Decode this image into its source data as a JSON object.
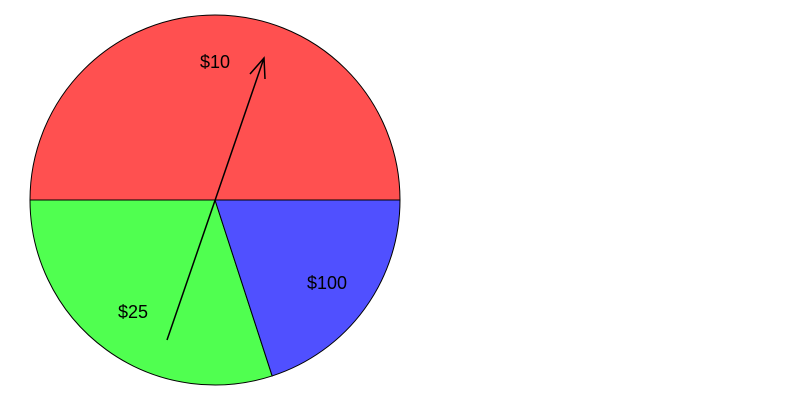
{
  "spinner": {
    "sectors": [
      {
        "id": "sector-10",
        "label": "$10",
        "color": "#ff5050",
        "start_deg": 180,
        "end_deg": 360
      },
      {
        "id": "sector-25",
        "label": "$25",
        "color": "#50ff50",
        "start_deg": 72,
        "end_deg": 180
      },
      {
        "id": "sector-100",
        "label": "$100",
        "color": "#5050ff",
        "start_deg": 0,
        "end_deg": 72
      }
    ],
    "outline_color": "#000000",
    "arrow_color": "#000000"
  }
}
